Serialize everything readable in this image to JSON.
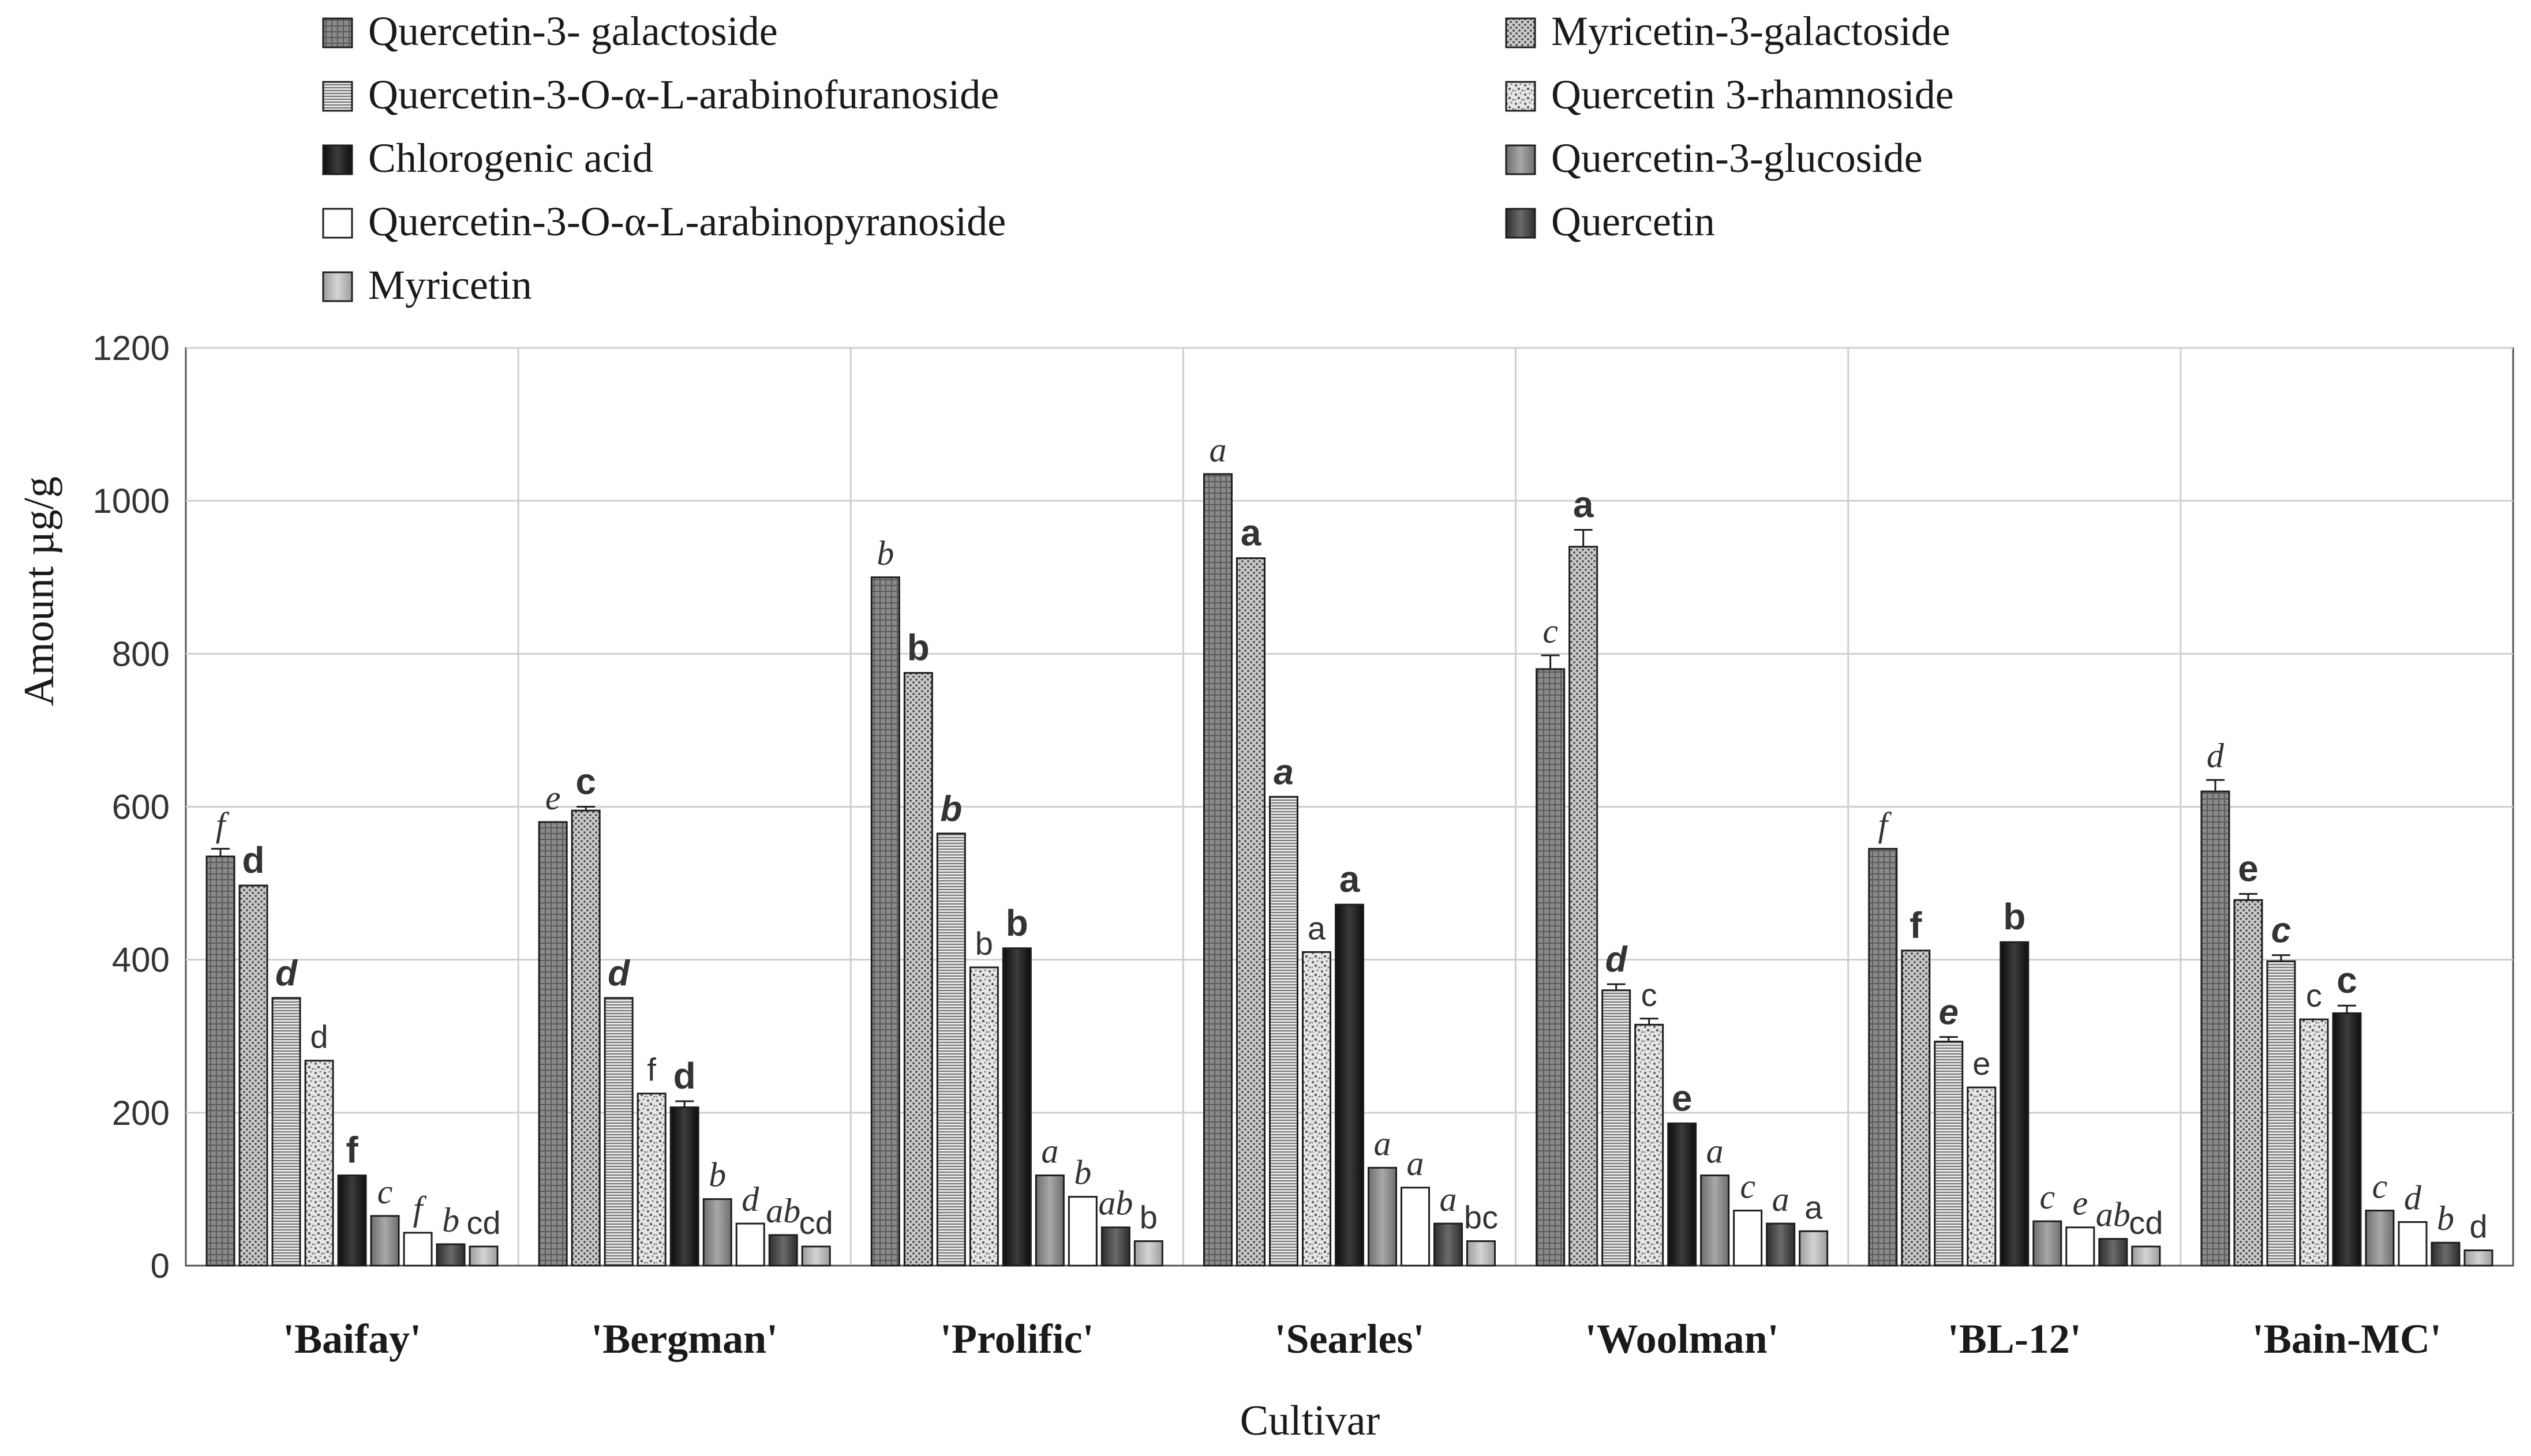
{
  "chart_data": {
    "type": "bar",
    "xlabel": "Cultivar",
    "ylabel": "Amount µg/g",
    "ylim": [
      0,
      1200
    ],
    "yticks": [
      "0",
      "200",
      "400",
      "600",
      "800",
      "1000",
      "1200"
    ],
    "grid": true,
    "legend_position": "top",
    "categories": [
      "'Baifay'",
      "'Bergman'",
      "'Prolific'",
      "'Searles'",
      "'Woolman'",
      "'BL-12'",
      "'Bain-MC'"
    ],
    "series": [
      {
        "name": "Quercetin-3- galactoside",
        "pattern": "grid",
        "values": [
          535,
          580,
          900,
          1035,
          780,
          545,
          620
        ],
        "errors": [
          10,
          0,
          0,
          0,
          18,
          0,
          15
        ],
        "labels": [
          "f",
          "e",
          "b",
          "a",
          "c",
          "f",
          "d"
        ],
        "label_style": "serif-italic"
      },
      {
        "name": "Quercetin-3-O-α-L-arabinofuranoside",
        "pattern": "hlines",
        "values": [
          350,
          350,
          565,
          613,
          360,
          293,
          398
        ],
        "errors": [
          0,
          0,
          0,
          0,
          8,
          6,
          8
        ],
        "labels": [
          "d",
          "d",
          "b",
          "a",
          "d",
          "e",
          "c"
        ],
        "label_style": "sans-bold-italic"
      },
      {
        "name": "Chlorogenic acid",
        "pattern": "black",
        "values": [
          118,
          207,
          415,
          472,
          186,
          423,
          330
        ],
        "errors": [
          0,
          8,
          0,
          0,
          0,
          0,
          10
        ],
        "labels": [
          "f",
          "d",
          "b",
          "a",
          "e",
          "b",
          "c"
        ],
        "label_style": "sans-bold"
      },
      {
        "name": "Quercetin-3-O-α-L-arabinopyranoside",
        "pattern": "white",
        "values": [
          43,
          55,
          90,
          102,
          72,
          50,
          57
        ],
        "errors": [
          0,
          0,
          0,
          0,
          0,
          0,
          0
        ],
        "labels": [
          "f",
          "d",
          "b",
          "a",
          "c",
          "e",
          "d"
        ],
        "label_style": "serif-italic"
      },
      {
        "name": "Myricetin",
        "pattern": "lightgray",
        "values": [
          25,
          25,
          32,
          32,
          45,
          25,
          20
        ],
        "errors": [
          0,
          0,
          0,
          0,
          0,
          0,
          0
        ],
        "labels": [
          "cd",
          "cd",
          "b",
          "bc",
          "a",
          "cd",
          "d"
        ],
        "label_style": "sans"
      },
      {
        "name": "Myricetin-3-galactoside",
        "pattern": "dots",
        "values": [
          497,
          595,
          775,
          925,
          940,
          412,
          478
        ],
        "errors": [
          0,
          5,
          0,
          0,
          22,
          0,
          8
        ],
        "labels": [
          "d",
          "c",
          "b",
          "a",
          "a",
          "f",
          "e"
        ],
        "label_style": "sans-bold"
      },
      {
        "name": "Quercetin 3-rhamnoside",
        "pattern": "speckle",
        "values": [
          268,
          225,
          390,
          410,
          315,
          233,
          322
        ],
        "errors": [
          0,
          0,
          0,
          0,
          8,
          0,
          0
        ],
        "labels": [
          "d",
          "f",
          "b",
          "a",
          "c",
          "e",
          "c"
        ],
        "label_style": "sans"
      },
      {
        "name": "Quercetin-3-glucoside",
        "pattern": "medgray",
        "values": [
          65,
          87,
          118,
          128,
          118,
          58,
          72
        ],
        "errors": [
          0,
          0,
          0,
          0,
          0,
          0,
          0
        ],
        "labels": [
          "c",
          "b",
          "a",
          "a",
          "a",
          "c",
          "c"
        ],
        "label_style": "serif-italic"
      },
      {
        "name": "Quercetin",
        "pattern": "darkgray",
        "values": [
          28,
          40,
          50,
          55,
          55,
          35,
          30
        ],
        "errors": [
          0,
          0,
          0,
          0,
          0,
          0,
          0
        ],
        "labels": [
          "b",
          "ab",
          "ab",
          "a",
          "a",
          "ab",
          "b"
        ],
        "label_style": "serif-italic"
      }
    ],
    "bar_order": [
      0,
      5,
      1,
      6,
      2,
      7,
      3,
      8,
      4
    ],
    "legend_order": [
      0,
      5,
      1,
      6,
      2,
      7,
      3,
      8,
      4
    ]
  }
}
